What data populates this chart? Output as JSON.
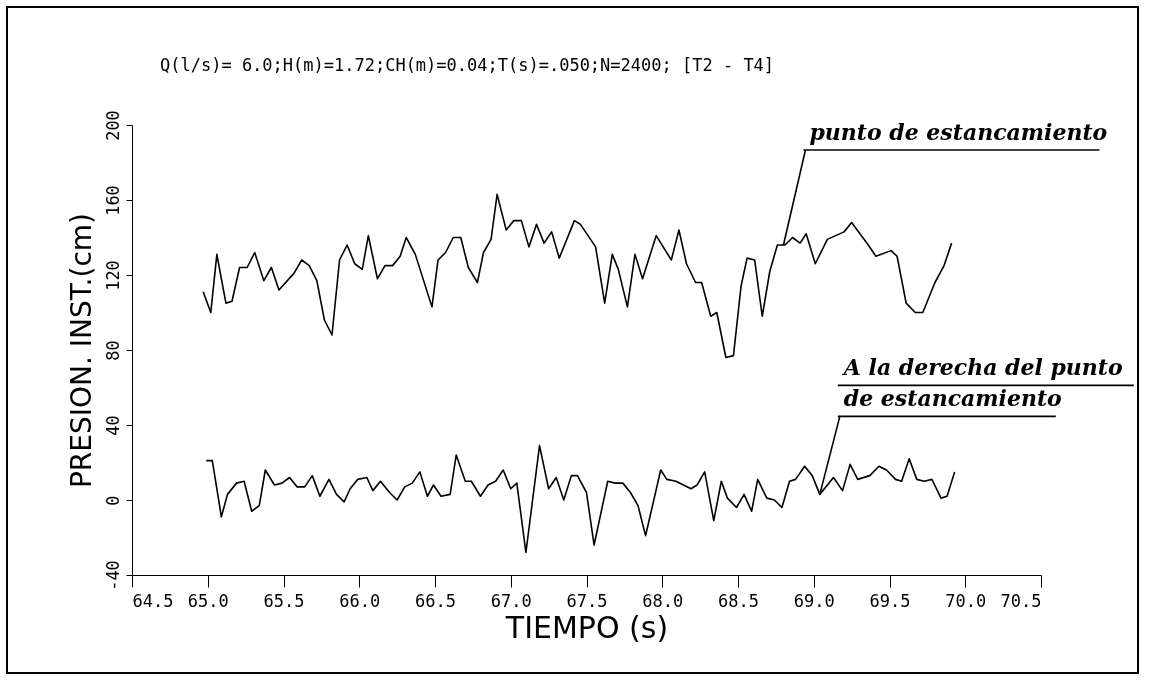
{
  "chart_data": {
    "type": "line",
    "title": "Q(l/s)= 6.0;H(m)=1.72;CH(m)=0.04;T(s)=.050;N=2400; [T2 - T4]",
    "xlabel": "TIEMPO (s)",
    "ylabel": "PRESION. INST.(cm)",
    "xlim": [
      64.5,
      70.5
    ],
    "xticks": [
      64.5,
      {
        "value": 65,
        "label": "65.0"
      },
      65.5,
      {
        "value": 66,
        "label": "66.0"
      },
      66.5,
      {
        "value": 67,
        "label": "67.0"
      },
      67.5,
      {
        "value": 68,
        "label": "68.0"
      },
      68.5,
      {
        "value": 69,
        "label": "69.0"
      },
      69.5,
      {
        "value": 70,
        "label": "70.0"
      },
      70.5
    ],
    "ylim": [
      -40,
      200
    ],
    "yticks": [
      -40,
      0,
      40,
      80,
      120,
      160,
      200
    ],
    "series": [
      {
        "color": "#000000",
        "x": [
          64.97,
          65.02,
          65.06,
          65.12,
          65.16,
          65.21,
          65.26,
          65.31,
          65.37,
          65.42,
          65.47,
          65.57,
          65.62,
          65.67,
          65.72,
          65.77,
          65.82,
          65.87,
          65.92,
          65.97,
          66.02,
          66.06,
          66.12,
          66.17,
          66.22,
          66.27,
          66.31,
          66.37,
          66.48,
          66.52,
          66.57,
          66.62,
          66.67,
          66.72,
          66.78,
          66.82,
          66.87,
          66.91,
          66.97,
          67.02,
          67.07,
          67.12,
          67.17,
          67.22,
          67.27,
          67.32,
          67.37,
          67.42,
          67.46,
          67.51,
          67.56,
          67.62,
          67.67,
          67.71,
          67.77,
          67.82,
          67.87,
          67.96,
          68.06,
          68.11,
          68.16,
          68.22,
          68.26,
          68.32,
          68.36,
          68.42,
          68.47,
          68.52,
          68.56,
          68.61,
          68.66,
          68.71,
          68.76,
          68.81,
          68.86,
          68.91,
          68.95,
          69.01,
          69.09,
          69.2,
          69.25,
          69.36,
          69.41,
          69.51,
          69.55,
          69.61,
          69.67,
          69.72,
          69.8,
          69.86,
          69.91
        ],
        "values": [
          111,
          100,
          131,
          105,
          106,
          124,
          124,
          132,
          117,
          124,
          112,
          121,
          128,
          125,
          117,
          96,
          88,
          128,
          136,
          126,
          123,
          141,
          118,
          125,
          125,
          130,
          140,
          131,
          103,
          128,
          132,
          140,
          140,
          124,
          116,
          132,
          139,
          163,
          144,
          149,
          149,
          135,
          147,
          137,
          143,
          129,
          139,
          149,
          147,
          141,
          135,
          105,
          131,
          123,
          103,
          131,
          118,
          141,
          128,
          144,
          126,
          116,
          116,
          98,
          100,
          76,
          77,
          114,
          129,
          128,
          98,
          122,
          136,
          136,
          140,
          137,
          142,
          126,
          139,
          143,
          148,
          136,
          130,
          133,
          130,
          105,
          100,
          100,
          116,
          125,
          137
        ]
      },
      {
        "color": "#000000",
        "x": [
          64.99,
          65.03,
          65.09,
          65.13,
          65.19,
          65.24,
          65.29,
          65.34,
          65.38,
          65.44,
          65.49,
          65.54,
          65.59,
          65.64,
          65.69,
          65.74,
          65.8,
          65.85,
          65.9,
          65.94,
          65.99,
          66.05,
          66.09,
          66.14,
          66.2,
          66.25,
          66.3,
          66.35,
          66.4,
          66.45,
          66.49,
          66.54,
          66.6,
          66.64,
          66.7,
          66.74,
          66.8,
          66.85,
          66.9,
          66.95,
          67.0,
          67.04,
          67.1,
          67.19,
          67.25,
          67.3,
          67.35,
          67.4,
          67.44,
          67.5,
          67.55,
          67.64,
          67.69,
          67.74,
          67.79,
          67.84,
          67.89,
          67.99,
          68.03,
          68.09,
          68.19,
          68.23,
          68.28,
          68.34,
          68.39,
          68.43,
          68.49,
          68.54,
          68.59,
          68.63,
          68.69,
          68.74,
          68.79,
          68.84,
          68.88,
          68.94,
          68.99,
          69.04,
          69.13,
          69.19,
          69.24,
          69.29,
          69.37,
          69.43,
          69.48,
          69.54,
          69.58,
          69.63,
          69.68,
          69.73,
          69.78,
          69.84,
          69.88,
          69.93
        ],
        "values": [
          21,
          21,
          -9,
          3,
          9,
          10,
          -6,
          -3,
          16,
          8,
          9,
          12,
          7,
          7,
          13,
          2,
          11,
          3,
          -1,
          6,
          11,
          12,
          5,
          10,
          4,
          0,
          7,
          9,
          15,
          2,
          8,
          2,
          3,
          24,
          10,
          10,
          2,
          8,
          10,
          16,
          6,
          9,
          -28,
          29,
          6,
          12,
          0,
          13,
          13,
          4,
          -24,
          10,
          9,
          9,
          4,
          -3,
          -19,
          16,
          11,
          10,
          6,
          8,
          15,
          -11,
          10,
          1,
          -4,
          3,
          -6,
          11,
          1,
          0,
          -4,
          10,
          11,
          18,
          13,
          3,
          12,
          5,
          19,
          11,
          13,
          18,
          16,
          11,
          10,
          22,
          11,
          10,
          11,
          1,
          2,
          15
        ]
      }
    ],
    "annotations": [
      {
        "text": "punto de estancamiento",
        "x": 68.8,
        "y": 136
      },
      {
        "text": "A la derecha del punto de estancamiento",
        "x": 69.04,
        "y": 3
      }
    ]
  }
}
